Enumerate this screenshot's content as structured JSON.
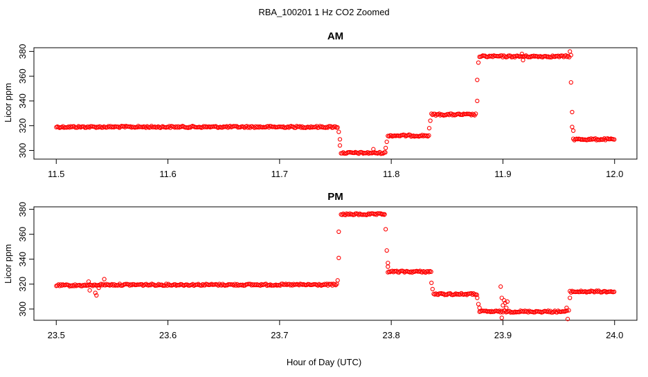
{
  "figure": {
    "title": "RBA_100201  1 Hz CO2 Zoomed",
    "xlabel": "Hour of Day (UTC)",
    "point_color": "#ff0000"
  },
  "chart_data": [
    {
      "type": "scatter",
      "title": "AM",
      "ylabel": "Licor ppm",
      "xlabel": "",
      "xlim": [
        11.48,
        12.02
      ],
      "ylim": [
        293,
        383
      ],
      "xticks": [
        11.5,
        11.6,
        11.7,
        11.8,
        11.9,
        12.0
      ],
      "xtick_labels": [
        "11.5",
        "11.6",
        "11.7",
        "11.8",
        "11.9",
        "12.0"
      ],
      "yticks": [
        300,
        320,
        340,
        360,
        380
      ],
      "ytick_labels": [
        "300",
        "320",
        "340",
        "360",
        "380"
      ],
      "grid": false,
      "series": [
        {
          "marker": "open-circle",
          "segments": [
            {
              "x_start": 11.5,
              "x_end": 11.752,
              "y": 319
            },
            {
              "x_start": 11.755,
              "x_end": 11.795,
              "y": 298
            },
            {
              "x_start": 11.797,
              "x_end": 11.834,
              "y": 312
            },
            {
              "x_start": 11.836,
              "x_end": 11.876,
              "y": 329
            },
            {
              "x_start": 11.879,
              "x_end": 11.96,
              "y": 376
            },
            {
              "x_start": 11.963,
              "x_end": 12.0,
              "y": 309
            }
          ],
          "points": [
            {
              "x": 11.753,
              "y": 315
            },
            {
              "x": 11.754,
              "y": 309
            },
            {
              "x": 11.754,
              "y": 304
            },
            {
              "x": 11.784,
              "y": 301
            },
            {
              "x": 11.795,
              "y": 302
            },
            {
              "x": 11.796,
              "y": 307
            },
            {
              "x": 11.834,
              "y": 318
            },
            {
              "x": 11.835,
              "y": 324
            },
            {
              "x": 11.877,
              "y": 340
            },
            {
              "x": 11.877,
              "y": 357
            },
            {
              "x": 11.878,
              "y": 371
            },
            {
              "x": 11.917,
              "y": 378
            },
            {
              "x": 11.918,
              "y": 373
            },
            {
              "x": 11.96,
              "y": 380
            },
            {
              "x": 11.961,
              "y": 377
            },
            {
              "x": 11.961,
              "y": 355
            },
            {
              "x": 11.962,
              "y": 331
            },
            {
              "x": 11.962,
              "y": 319
            },
            {
              "x": 11.963,
              "y": 316
            }
          ]
        }
      ]
    },
    {
      "type": "scatter",
      "title": "PM",
      "ylabel": "Licor ppm",
      "xlabel": "",
      "xlim": [
        23.48,
        24.02
      ],
      "ylim": [
        291,
        382
      ],
      "xticks": [
        23.5,
        23.6,
        23.7,
        23.8,
        23.9,
        24.0
      ],
      "xtick_labels": [
        "23.5",
        "23.6",
        "23.7",
        "23.8",
        "23.9",
        "24.0"
      ],
      "yticks": [
        300,
        320,
        340,
        360,
        380
      ],
      "ytick_labels": [
        "300",
        "320",
        "340",
        "360",
        "380"
      ],
      "grid": false,
      "series": [
        {
          "marker": "open-circle",
          "segments": [
            {
              "x_start": 23.5,
              "x_end": 23.536,
              "y": 319
            },
            {
              "x_start": 23.536,
              "x_end": 23.752,
              "y": 319.5
            },
            {
              "x_start": 23.755,
              "x_end": 23.794,
              "y": 376
            },
            {
              "x_start": 23.797,
              "x_end": 23.836,
              "y": 330
            },
            {
              "x_start": 23.838,
              "x_end": 23.877,
              "y": 312
            },
            {
              "x_start": 23.879,
              "x_end": 23.958,
              "y": 298
            },
            {
              "x_start": 23.96,
              "x_end": 24.0,
              "y": 314
            }
          ],
          "points": [
            {
              "x": 23.529,
              "y": 322
            },
            {
              "x": 23.53,
              "y": 315
            },
            {
              "x": 23.535,
              "y": 313
            },
            {
              "x": 23.536,
              "y": 311
            },
            {
              "x": 23.538,
              "y": 317
            },
            {
              "x": 23.54,
              "y": 320
            },
            {
              "x": 23.543,
              "y": 324
            },
            {
              "x": 23.752,
              "y": 323
            },
            {
              "x": 23.753,
              "y": 341
            },
            {
              "x": 23.753,
              "y": 362
            },
            {
              "x": 23.794,
              "y": 376
            },
            {
              "x": 23.795,
              "y": 364
            },
            {
              "x": 23.796,
              "y": 347
            },
            {
              "x": 23.797,
              "y": 337
            },
            {
              "x": 23.797,
              "y": 334
            },
            {
              "x": 23.836,
              "y": 321
            },
            {
              "x": 23.837,
              "y": 316
            },
            {
              "x": 23.877,
              "y": 309
            },
            {
              "x": 23.878,
              "y": 304
            },
            {
              "x": 23.879,
              "y": 301
            },
            {
              "x": 23.898,
              "y": 318
            },
            {
              "x": 23.899,
              "y": 309
            },
            {
              "x": 23.9,
              "y": 303
            },
            {
              "x": 23.901,
              "y": 307
            },
            {
              "x": 23.902,
              "y": 305
            },
            {
              "x": 23.903,
              "y": 301
            },
            {
              "x": 23.904,
              "y": 306
            },
            {
              "x": 23.899,
              "y": 293
            },
            {
              "x": 23.957,
              "y": 301
            },
            {
              "x": 23.958,
              "y": 292
            },
            {
              "x": 23.959,
              "y": 299
            },
            {
              "x": 23.96,
              "y": 309
            }
          ]
        }
      ]
    }
  ]
}
